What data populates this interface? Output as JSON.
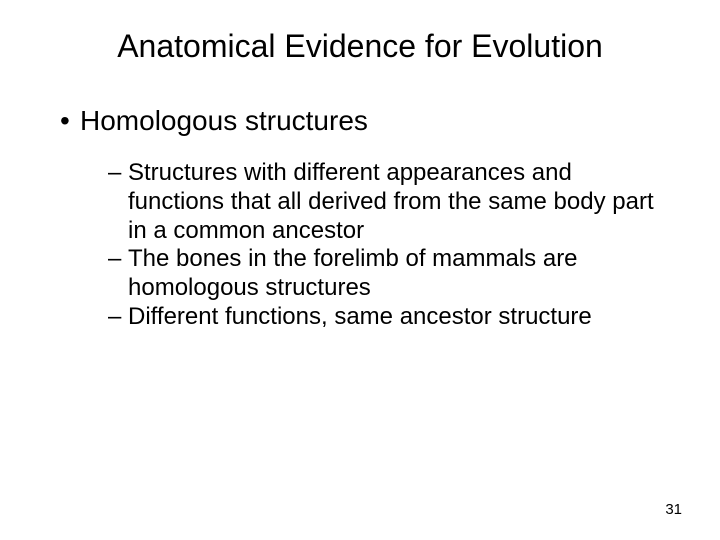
{
  "slide": {
    "title": "Anatomical Evidence for Evolution",
    "bullet_main": "Homologous structures",
    "sub_bullets": [
      "Structures with different appearances and functions that all derived from the same body part in a common ancestor",
      "The bones in the forelimb of mammals are homologous structures",
      "Different functions, same ancestor structure"
    ],
    "page_number": "31"
  },
  "styling": {
    "background_color": "#ffffff",
    "text_color": "#000000",
    "title_fontsize": 32,
    "bullet_l1_fontsize": 28,
    "bullet_l2_fontsize": 24,
    "page_number_fontsize": 15,
    "font_family": "Arial"
  }
}
